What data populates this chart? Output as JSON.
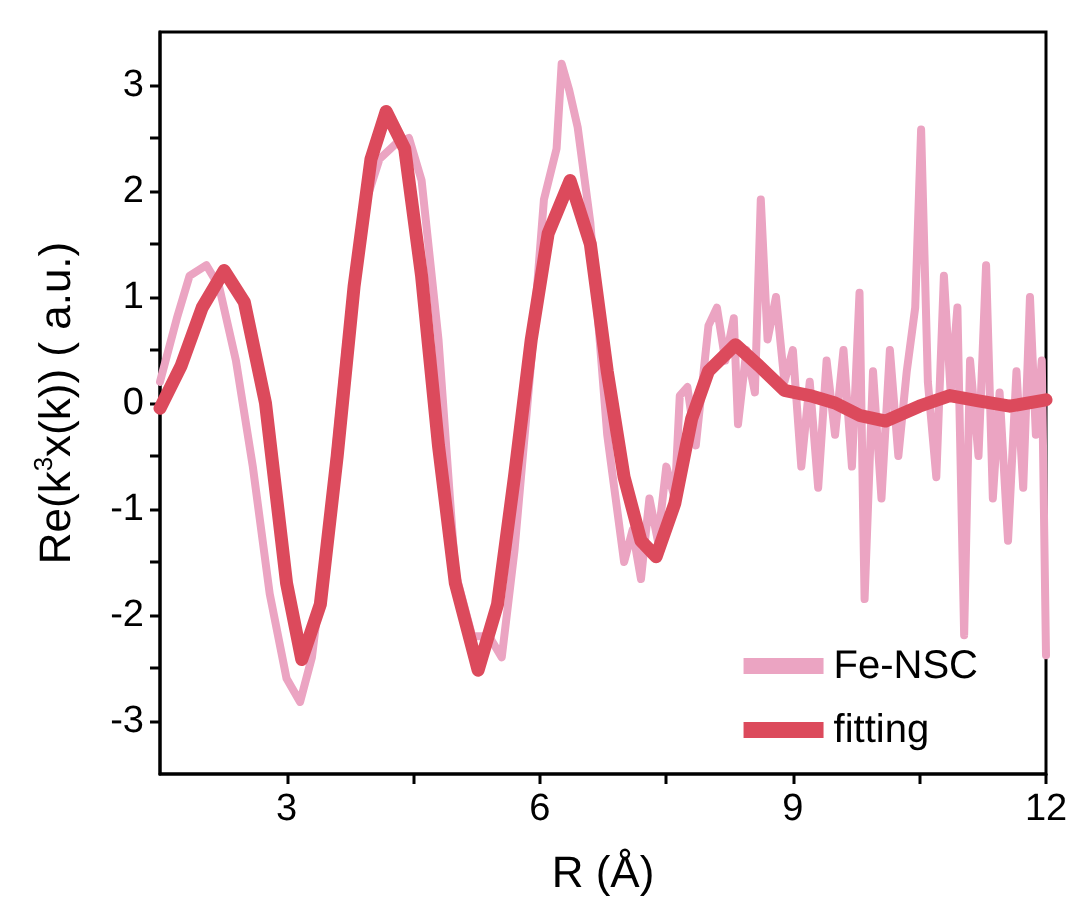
{
  "chart_data": {
    "type": "line",
    "xlabel": "R (Å)",
    "ylabel": "Re(k$^{3}$x(k)) ( a.u.)",
    "xlim": [
      1.5,
      12
    ],
    "ylim": [
      -3.5,
      3.5
    ],
    "xticks": [
      3,
      {
        "value": 4.5,
        "label": null
      },
      6,
      {
        "value": 7.5,
        "label": null
      },
      9,
      {
        "value": 10.5,
        "label": null
      },
      12
    ],
    "yticks": [
      -3,
      {
        "value": -2.5,
        "label": null
      },
      -2,
      {
        "value": -1.5,
        "label": null
      },
      -1,
      {
        "value": -0.5,
        "label": null
      },
      0,
      {
        "value": 0.5,
        "label": null
      },
      1,
      {
        "value": 1.5,
        "label": null
      },
      2,
      {
        "value": 2.5,
        "label": null
      },
      3
    ],
    "grid": false,
    "legend": "bottom right",
    "marker": "none",
    "line_style": "solid",
    "series": [
      {
        "name": "Fe-NSC",
        "color": "#eba4c2",
        "x": [
          1.5,
          1.7,
          1.85,
          2.05,
          2.2,
          2.4,
          2.6,
          2.8,
          3.0,
          3.16,
          3.3,
          3.5,
          3.7,
          3.9,
          4.1,
          4.3,
          4.45,
          4.6,
          4.8,
          5.0,
          5.2,
          5.4,
          5.55,
          5.7,
          5.9,
          6.05,
          6.2,
          6.26,
          6.35,
          6.45,
          6.6,
          6.8,
          7.0,
          7.1,
          7.2,
          7.3,
          7.4,
          7.5,
          7.6,
          7.66,
          7.75,
          7.85,
          8.0,
          8.1,
          8.2,
          8.3,
          8.35,
          8.45,
          8.55,
          8.62,
          8.7,
          8.8,
          8.9,
          9.0,
          9.1,
          9.2,
          9.3,
          9.4,
          9.5,
          9.6,
          9.7,
          9.79,
          9.85,
          9.95,
          10.05,
          10.15,
          10.25,
          10.35,
          10.45,
          10.52,
          10.6,
          10.7,
          10.79,
          10.87,
          10.95,
          11.03,
          11.1,
          11.2,
          11.29,
          11.37,
          11.45,
          11.55,
          11.65,
          11.73,
          11.81,
          11.88,
          11.95,
          12.0
        ],
        "values": [
          0.2,
          0.8,
          1.2,
          1.3,
          1.1,
          0.4,
          -0.6,
          -1.8,
          -2.6,
          -2.82,
          -2.4,
          -1.1,
          0.5,
          1.8,
          2.3,
          2.45,
          2.5,
          2.1,
          0.6,
          -1.6,
          -2.2,
          -2.2,
          -2.4,
          -1.4,
          0.4,
          1.92,
          2.4,
          3.2,
          2.95,
          2.6,
          1.7,
          -0.3,
          -1.5,
          -1.2,
          -1.66,
          -0.9,
          -1.3,
          -0.6,
          -0.9,
          0.07,
          0.15,
          -0.4,
          0.73,
          0.9,
          0.4,
          0.8,
          -0.2,
          0.5,
          0.1,
          1.92,
          0.6,
          1.0,
          0.2,
          0.5,
          -0.6,
          0.2,
          -0.8,
          0.4,
          -0.3,
          0.5,
          -0.6,
          1.04,
          -1.85,
          0.3,
          -0.9,
          0.5,
          -0.5,
          0.3,
          0.9,
          2.58,
          0.2,
          -0.7,
          1.2,
          0.1,
          0.9,
          -2.19,
          0.4,
          -0.5,
          1.3,
          -0.9,
          0.1,
          -1.3,
          0.3,
          -0.8,
          1.0,
          -0.3,
          0.4,
          -2.38
        ]
      },
      {
        "name": "fitting",
        "color": "#dc4a5c",
        "x": [
          1.5,
          1.75,
          2.0,
          2.26,
          2.5,
          2.75,
          3.0,
          3.18,
          3.4,
          3.6,
          3.8,
          4.0,
          4.18,
          4.4,
          4.6,
          4.8,
          5.0,
          5.27,
          5.5,
          5.7,
          5.9,
          6.1,
          6.36,
          6.6,
          6.8,
          7.0,
          7.2,
          7.38,
          7.6,
          7.8,
          8.0,
          8.32,
          8.6,
          8.9,
          9.2,
          9.5,
          9.8,
          10.1,
          10.5,
          10.86,
          11.2,
          11.57,
          12.0
        ],
        "values": [
          -0.05,
          0.35,
          0.9,
          1.25,
          0.95,
          0.0,
          -1.7,
          -2.42,
          -1.9,
          -0.5,
          1.1,
          2.3,
          2.75,
          2.4,
          1.2,
          -0.4,
          -1.7,
          -2.52,
          -1.9,
          -0.7,
          0.6,
          1.6,
          2.1,
          1.5,
          0.3,
          -0.7,
          -1.3,
          -1.45,
          -0.95,
          -0.15,
          0.3,
          0.55,
          0.35,
          0.12,
          0.07,
          0.0,
          -0.12,
          -0.17,
          -0.03,
          0.07,
          0.02,
          -0.03,
          0.03
        ]
      }
    ]
  }
}
